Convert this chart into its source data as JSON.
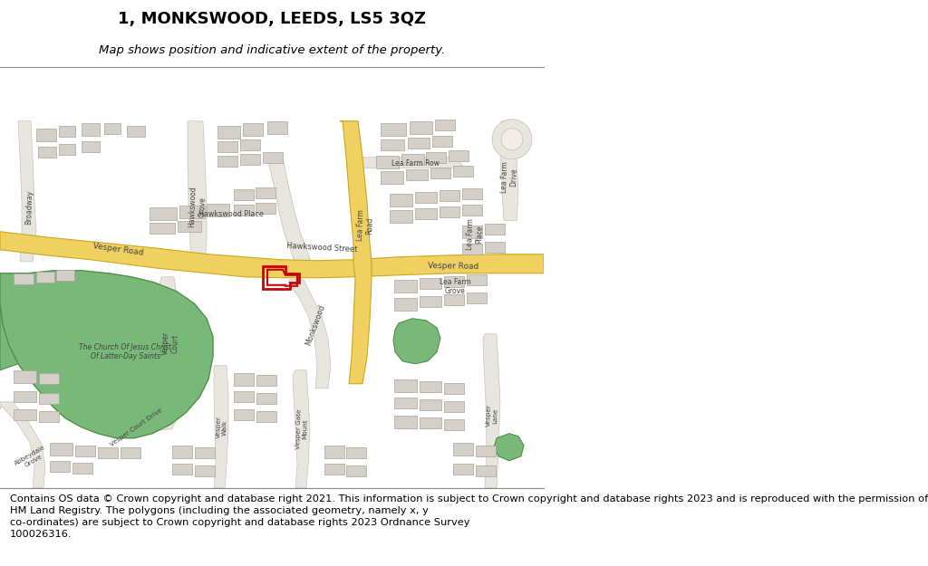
{
  "title": "1, MONKSWOOD, LEEDS, LS5 3QZ",
  "subtitle": "Map shows position and indicative extent of the property.",
  "footer": "Contains OS data © Crown copyright and database right 2021. This information is subject to Crown copyright and database rights 2023 and is reproduced with the permission of\nHM Land Registry. The polygons (including the associated geometry, namely x, y\nco-ordinates) are subject to Crown copyright and database rights 2023 Ordnance Survey\n100026316.",
  "bg_color": "#f2ede6",
  "road_yellow": "#f0d060",
  "road_yellow_outline": "#c8a820",
  "road_gray": "#e8e4de",
  "road_gray_outline": "#c8c4be",
  "building_fill": "#d4cfc8",
  "building_outline": "#a8a49e",
  "green_fill": "#78b878",
  "green_outline": "#50904a",
  "red": "#cc0000",
  "white": "#ffffff",
  "title_fontsize": 13,
  "subtitle_fontsize": 9.5,
  "footer_fontsize": 8.2,
  "label_color": "#444444"
}
